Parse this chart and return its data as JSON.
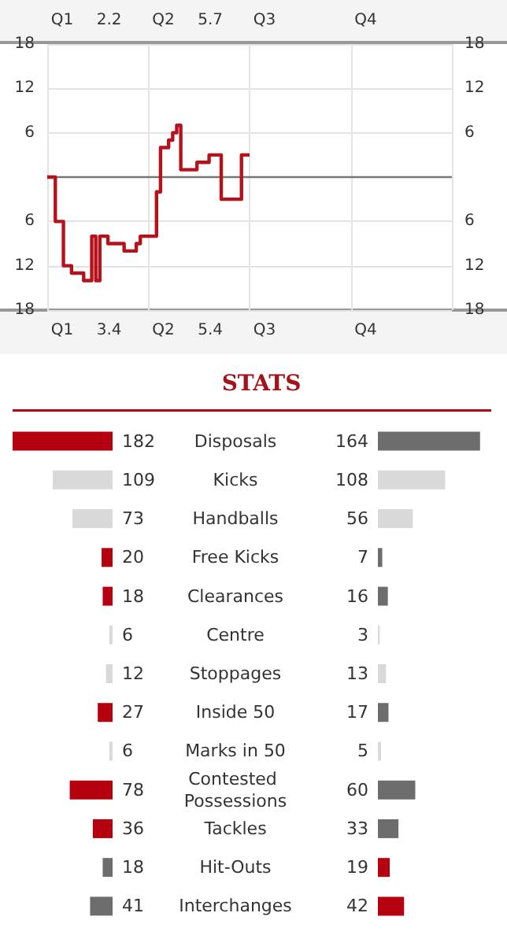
{
  "chart_data": [
    {
      "type": "step",
      "categories": [
        null,
        null,
        null,
        null,
        null,
        null,
        null,
        null,
        null,
        null,
        null,
        null,
        null,
        null,
        null,
        null,
        null,
        null,
        null,
        null,
        null,
        null,
        null,
        null,
        null,
        null,
        null,
        null,
        null,
        null,
        null,
        null,
        null,
        null,
        null,
        null,
        null,
        null,
        null,
        null,
        null,
        null,
        null,
        null,
        null,
        null,
        null,
        null,
        null,
        null,
        null,
        null,
        null,
        null,
        null,
        null,
        null,
        null,
        null,
        null,
        null,
        null,
        null,
        null,
        null,
        null,
        null,
        null,
        null,
        null,
        null,
        null,
        null,
        null,
        null,
        null,
        null,
        null,
        null,
        null,
        null,
        null,
        null,
        null,
        null,
        null,
        null,
        null,
        null,
        null,
        null,
        null,
        null,
        null,
        null,
        null,
        null,
        null,
        null,
        null,
        null
      ],
      "series": [
        {
          "color": "#b5121b",
          "values": [
            0,
            0,
            0,
            -6,
            -6,
            -12,
            -12,
            -13,
            -13,
            -13,
            -14,
            -14,
            -8,
            -14,
            -8,
            -8,
            -9,
            -9,
            -9,
            -9,
            -10,
            -10,
            -10,
            -9,
            -8,
            -8,
            -8,
            -8,
            -2,
            4,
            4,
            5,
            6,
            7,
            1,
            1,
            1,
            1,
            2,
            2,
            2,
            3,
            3,
            3,
            -3,
            -3,
            -3,
            -3,
            -3,
            3,
            3,
            null,
            null,
            null,
            null,
            null,
            null,
            null,
            null,
            null,
            null,
            null,
            null,
            null,
            null,
            null,
            null,
            null,
            null,
            null,
            null,
            null,
            null,
            null,
            null,
            null,
            null,
            null,
            null,
            null,
            null,
            null,
            null,
            null,
            null,
            null,
            null,
            null,
            null,
            null,
            null,
            null,
            null,
            null,
            null,
            null,
            null,
            null,
            null,
            null,
            null
          ]
        }
      ],
      "annotations": [
        "Q1",
        "2.2",
        "Q2",
        "5.7",
        "Q3",
        "Q4",
        "Q1",
        "3.4",
        "Q2",
        "5.4",
        "Q3",
        "Q4"
      ],
      "ylim": [
        -18,
        18
      ],
      "yticks": [
        {
          "value": -18,
          "label": "18"
        },
        {
          "value": -12,
          "label": "12"
        },
        {
          "value": -6,
          "label": "6"
        },
        {
          "value": 0,
          "label": null
        },
        6,
        12,
        18
      ],
      "y2lim": [
        -18,
        18
      ],
      "y2ticks": [
        {
          "value": -18,
          "label": "18"
        },
        {
          "value": -12,
          "label": "12"
        },
        {
          "value": -6,
          "label": "6"
        },
        {
          "value": 0,
          "label": null
        },
        6,
        12,
        18
      ],
      "ref_lines": [
        {
          "axis": "y",
          "value": 0,
          "color": "#777777"
        }
      ],
      "grid": true,
      "marker": "none",
      "line_style": "solid"
    },
    {
      "type": "bar",
      "title": "STATS",
      "orientation": "horizontal",
      "categories": [
        "Disposals",
        "Kicks",
        "Handballs",
        "Free Kicks",
        "Clearances",
        "Centre",
        "Stoppages",
        "Inside 50",
        "Marks in 50",
        "Contested Possessions",
        "Tackles",
        "Hit-Outs",
        "Interchanges"
      ],
      "series": [
        {
          "values": [
            182,
            109,
            73,
            20,
            18,
            6,
            12,
            27,
            6,
            78,
            36,
            18,
            41
          ],
          "colors": [
            "#b5000f",
            "#d9d9d9",
            "#d9d9d9",
            "#b5000f",
            "#b5000f",
            "#d9d9d9",
            "#d9d9d9",
            "#b5000f",
            "#d9d9d9",
            "#b5000f",
            "#b5000f",
            "#6d6d6d",
            "#6d6d6d"
          ]
        }
      ],
      "data_labels": true
    },
    {
      "type": "bar",
      "orientation": "horizontal",
      "categories": [
        "Disposals",
        "Kicks",
        "Handballs",
        "Free Kicks",
        "Clearances",
        "Centre",
        "Stoppages",
        "Inside 50",
        "Marks in 50",
        "Contested Possessions",
        "Tackles",
        "Hit-Outs",
        "Interchanges"
      ],
      "series": [
        {
          "values": [
            164,
            108,
            56,
            7,
            16,
            3,
            13,
            17,
            5,
            60,
            33,
            19,
            42
          ],
          "colors": [
            "#6d6d6d",
            "#d9d9d9",
            "#d9d9d9",
            "#6d6d6d",
            "#6d6d6d",
            "#d9d9d9",
            "#d9d9d9",
            "#6d6d6d",
            "#d9d9d9",
            "#6d6d6d",
            "#6d6d6d",
            "#b5000f",
            "#b5000f"
          ]
        }
      ],
      "tick_labels": false,
      "data_labels": true
    }
  ]
}
